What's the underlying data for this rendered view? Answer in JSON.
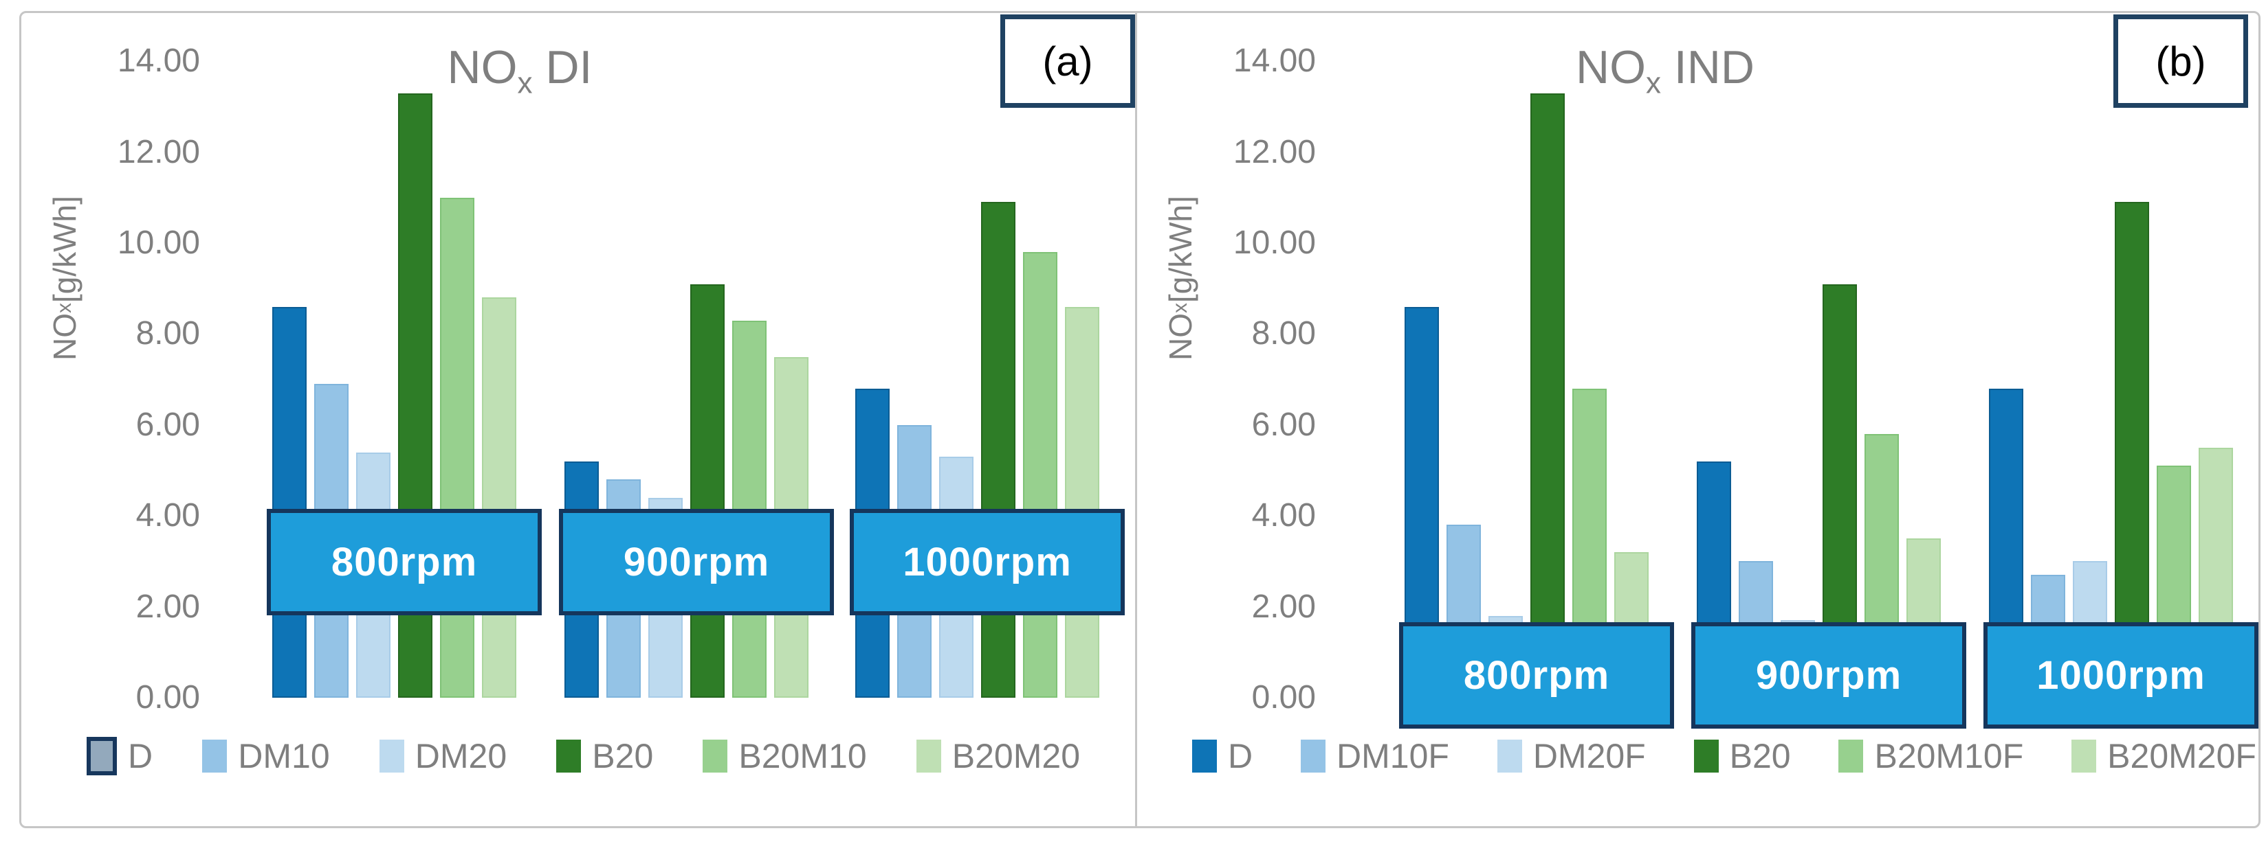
{
  "figure": {
    "panel_a_label": "(a)",
    "panel_b_label": "(b)"
  },
  "axis": {
    "ylabel": {
      "pre": "NO",
      "sub": "x",
      "post": " [g/kWh]"
    },
    "ticks": [
      "14.00",
      "12.00",
      "10.00",
      "8.00",
      "6.00",
      "4.00",
      "2.00",
      "0.00"
    ],
    "ylim": [
      0,
      14
    ]
  },
  "colors": {
    "rpm_box_fill": "#1e9dda",
    "rpm_box_border": "#15365c",
    "corner_box_border": "#1f4262",
    "text_gray": "#7f7f7f"
  },
  "chart_data": [
    {
      "type": "bar",
      "title": {
        "pre": "NO",
        "sub": "x",
        "post": " DI"
      },
      "ylabel": "NOx [g/kWh]",
      "ylim": [
        0,
        14
      ],
      "grid": false,
      "legend_position": "bottom",
      "categories": [
        "800rpm",
        "900rpm",
        "1000rpm"
      ],
      "series": [
        {
          "name": "D",
          "values": [
            8.6,
            5.2,
            6.8
          ],
          "color": "#0e74b6",
          "border": "#0b5c94",
          "highlighted": true
        },
        {
          "name": "DM10",
          "values": [
            6.9,
            4.8,
            6.0
          ],
          "color": "#94c3e6",
          "border": "#7fb4dc",
          "highlighted": false
        },
        {
          "name": "DM20",
          "values": [
            5.4,
            4.4,
            5.3
          ],
          "color": "#bddaef",
          "border": "#a8cce8",
          "highlighted": false
        },
        {
          "name": "B20",
          "values": [
            13.3,
            9.1,
            10.9
          ],
          "color": "#2e7d27",
          "border": "#24661e",
          "highlighted": false
        },
        {
          "name": "B20M10",
          "values": [
            11.0,
            8.3,
            9.8
          ],
          "color": "#97d08e",
          "border": "#7fc276",
          "highlighted": false
        },
        {
          "name": "B20M20",
          "values": [
            8.8,
            7.5,
            8.6
          ],
          "color": "#bfe0b4",
          "border": "#acd69f",
          "highlighted": false
        }
      ]
    },
    {
      "type": "bar",
      "title": {
        "pre": "NO",
        "sub": "x",
        "post": " IND"
      },
      "ylabel": "NOx [g/kWh]",
      "ylim": [
        0,
        14
      ],
      "grid": false,
      "legend_position": "bottom",
      "categories": [
        "800rpm",
        "900rpm",
        "1000rpm"
      ],
      "series": [
        {
          "name": "D",
          "values": [
            8.6,
            5.2,
            6.8
          ],
          "color": "#0e74b6",
          "border": "#0b5c94",
          "highlighted": false
        },
        {
          "name": "DM10F",
          "values": [
            3.8,
            3.0,
            2.7
          ],
          "color": "#94c3e6",
          "border": "#7fb4dc",
          "highlighted": false
        },
        {
          "name": "DM20F",
          "values": [
            1.8,
            1.7,
            3.0
          ],
          "color": "#bddaef",
          "border": "#a8cce8",
          "highlighted": false
        },
        {
          "name": "B20",
          "values": [
            13.3,
            9.1,
            10.9
          ],
          "color": "#2e7d27",
          "border": "#24661e",
          "highlighted": false
        },
        {
          "name": "B20M10F",
          "values": [
            6.8,
            5.8,
            5.1
          ],
          "color": "#97d08e",
          "border": "#7fc276",
          "highlighted": false
        },
        {
          "name": "B20M20F",
          "values": [
            3.2,
            3.5,
            5.5
          ],
          "color": "#bfe0b4",
          "border": "#acd69f",
          "highlighted": false
        }
      ]
    }
  ]
}
